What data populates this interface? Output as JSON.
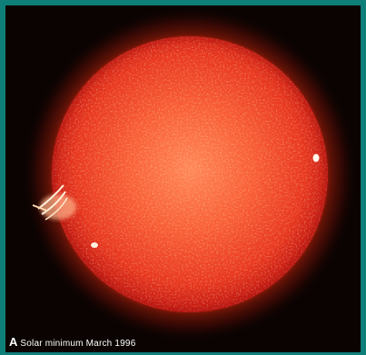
{
  "image": {
    "subject": "sun",
    "colors": {
      "frame": "#0f7f79",
      "background": "#0a0302",
      "sun_core": "#ff7a4a",
      "sun_mid": "#f04a2a",
      "sun_limb": "#c81810",
      "flare": "#fff0d8"
    }
  },
  "caption": {
    "letter": "A",
    "text": "Solar minimum March 1996"
  }
}
